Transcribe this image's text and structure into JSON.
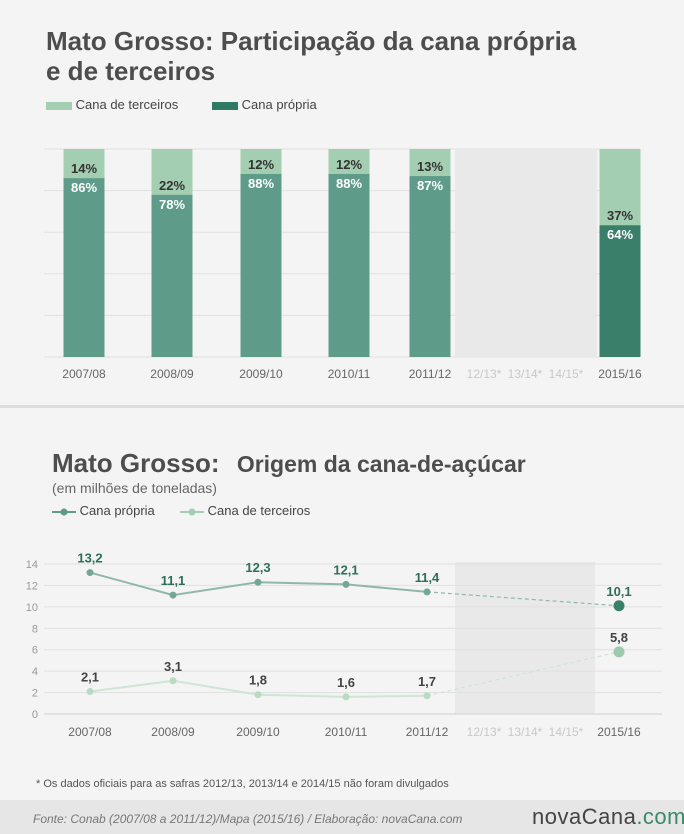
{
  "colors": {
    "own_bar": "#5e9b88",
    "own_bar_last": "#3a7f6a",
    "third_bar": "#a3ceb1",
    "grid": "#e0e0e0",
    "shade": "#e9e9e9",
    "own_line": "#8fb9a7",
    "own_marker": "#74a796",
    "third_line": "#cfe5d4",
    "third_marker": "#b9dbc4",
    "own_label": "#2d6e58",
    "muted_tick": "#c8c8c8"
  },
  "chart1": {
    "title_line1": "Mato Grosso: Participação da cana própria",
    "title_line2": "e de terceiros",
    "legend": [
      {
        "name": "legend-third-party",
        "label": "Cana de terceiros",
        "color": "#a3ceb1"
      },
      {
        "name": "legend-own",
        "label": "Cana própria",
        "color": "#2f7a64"
      }
    ]
  },
  "chart2": {
    "title_bold": "Mato Grosso:",
    "title_rest": "Origem da cana-de-açúcar",
    "subtitle": "(em milhões de toneladas)",
    "legend": [
      {
        "name": "legend-own",
        "label": "Cana própria",
        "color": "#5e9b88"
      },
      {
        "name": "legend-third-party",
        "label": "Cana de terceiros",
        "color": "#a3ceb1"
      }
    ]
  },
  "chart_data": [
    {
      "type": "bar",
      "stacked": true,
      "percent": true,
      "title": "Mato Grosso: Participação da cana própria e de terceiros",
      "categories": [
        "2007/08",
        "2008/09",
        "2009/10",
        "2010/11",
        "2011/12",
        "12/13*",
        "13/14*",
        "14/15*",
        "2015/16"
      ],
      "missing_categories": [
        "12/13*",
        "13/14*",
        "14/15*"
      ],
      "series": [
        {
          "name": "Cana própria",
          "values": [
            86,
            78,
            88,
            88,
            87,
            null,
            null,
            null,
            64
          ],
          "labels": [
            "86%",
            "78%",
            "88%",
            "88%",
            "87%",
            "",
            "",
            "",
            "64%"
          ]
        },
        {
          "name": "Cana de terceiros",
          "values": [
            14,
            22,
            12,
            12,
            13,
            null,
            null,
            null,
            37
          ],
          "labels": [
            "14%",
            "22%",
            "12%",
            "12%",
            "13%",
            "",
            "",
            "",
            "37%"
          ]
        }
      ],
      "ylim": [
        0,
        100
      ],
      "grid": true,
      "legend": "top-left"
    },
    {
      "type": "line",
      "title": "Mato Grosso: Origem da cana-de-açúcar",
      "ylabel": "(em milhões de toneladas)",
      "categories": [
        "2007/08",
        "2008/09",
        "2009/10",
        "2010/11",
        "2011/12",
        "12/13*",
        "13/14*",
        "14/15*",
        "2015/16"
      ],
      "missing_categories": [
        "12/13*",
        "13/14*",
        "14/15*"
      ],
      "series": [
        {
          "name": "Cana própria",
          "values": [
            13.2,
            11.1,
            12.3,
            12.1,
            11.4,
            null,
            null,
            null,
            10.1
          ],
          "labels": [
            "13,2",
            "11,1",
            "12,3",
            "12,1",
            "11,4",
            "",
            "",
            "",
            "10,1"
          ]
        },
        {
          "name": "Cana de terceiros",
          "values": [
            2.1,
            3.1,
            1.8,
            1.6,
            1.7,
            null,
            null,
            null,
            5.8
          ],
          "labels": [
            "2,1",
            "3,1",
            "1,8",
            "1,6",
            "1,7",
            "",
            "",
            "",
            "5,8"
          ]
        }
      ],
      "yticks": [
        "0",
        "2",
        "4",
        "6",
        "8",
        "10",
        "12",
        "14"
      ],
      "ylim": [
        0,
        14
      ],
      "grid": true,
      "legend": "top-left"
    }
  ],
  "footnote": "* Os dados oficiais para as safras 2012/13, 2013/14 e 2014/15 não foram divulgados",
  "source": "Fonte:  Conab (2007/08 a 2011/12)/Mapa (2015/16) / Elaboração:  novaCana.com",
  "brand": {
    "part1": "novaCana",
    "part2": ".com"
  }
}
